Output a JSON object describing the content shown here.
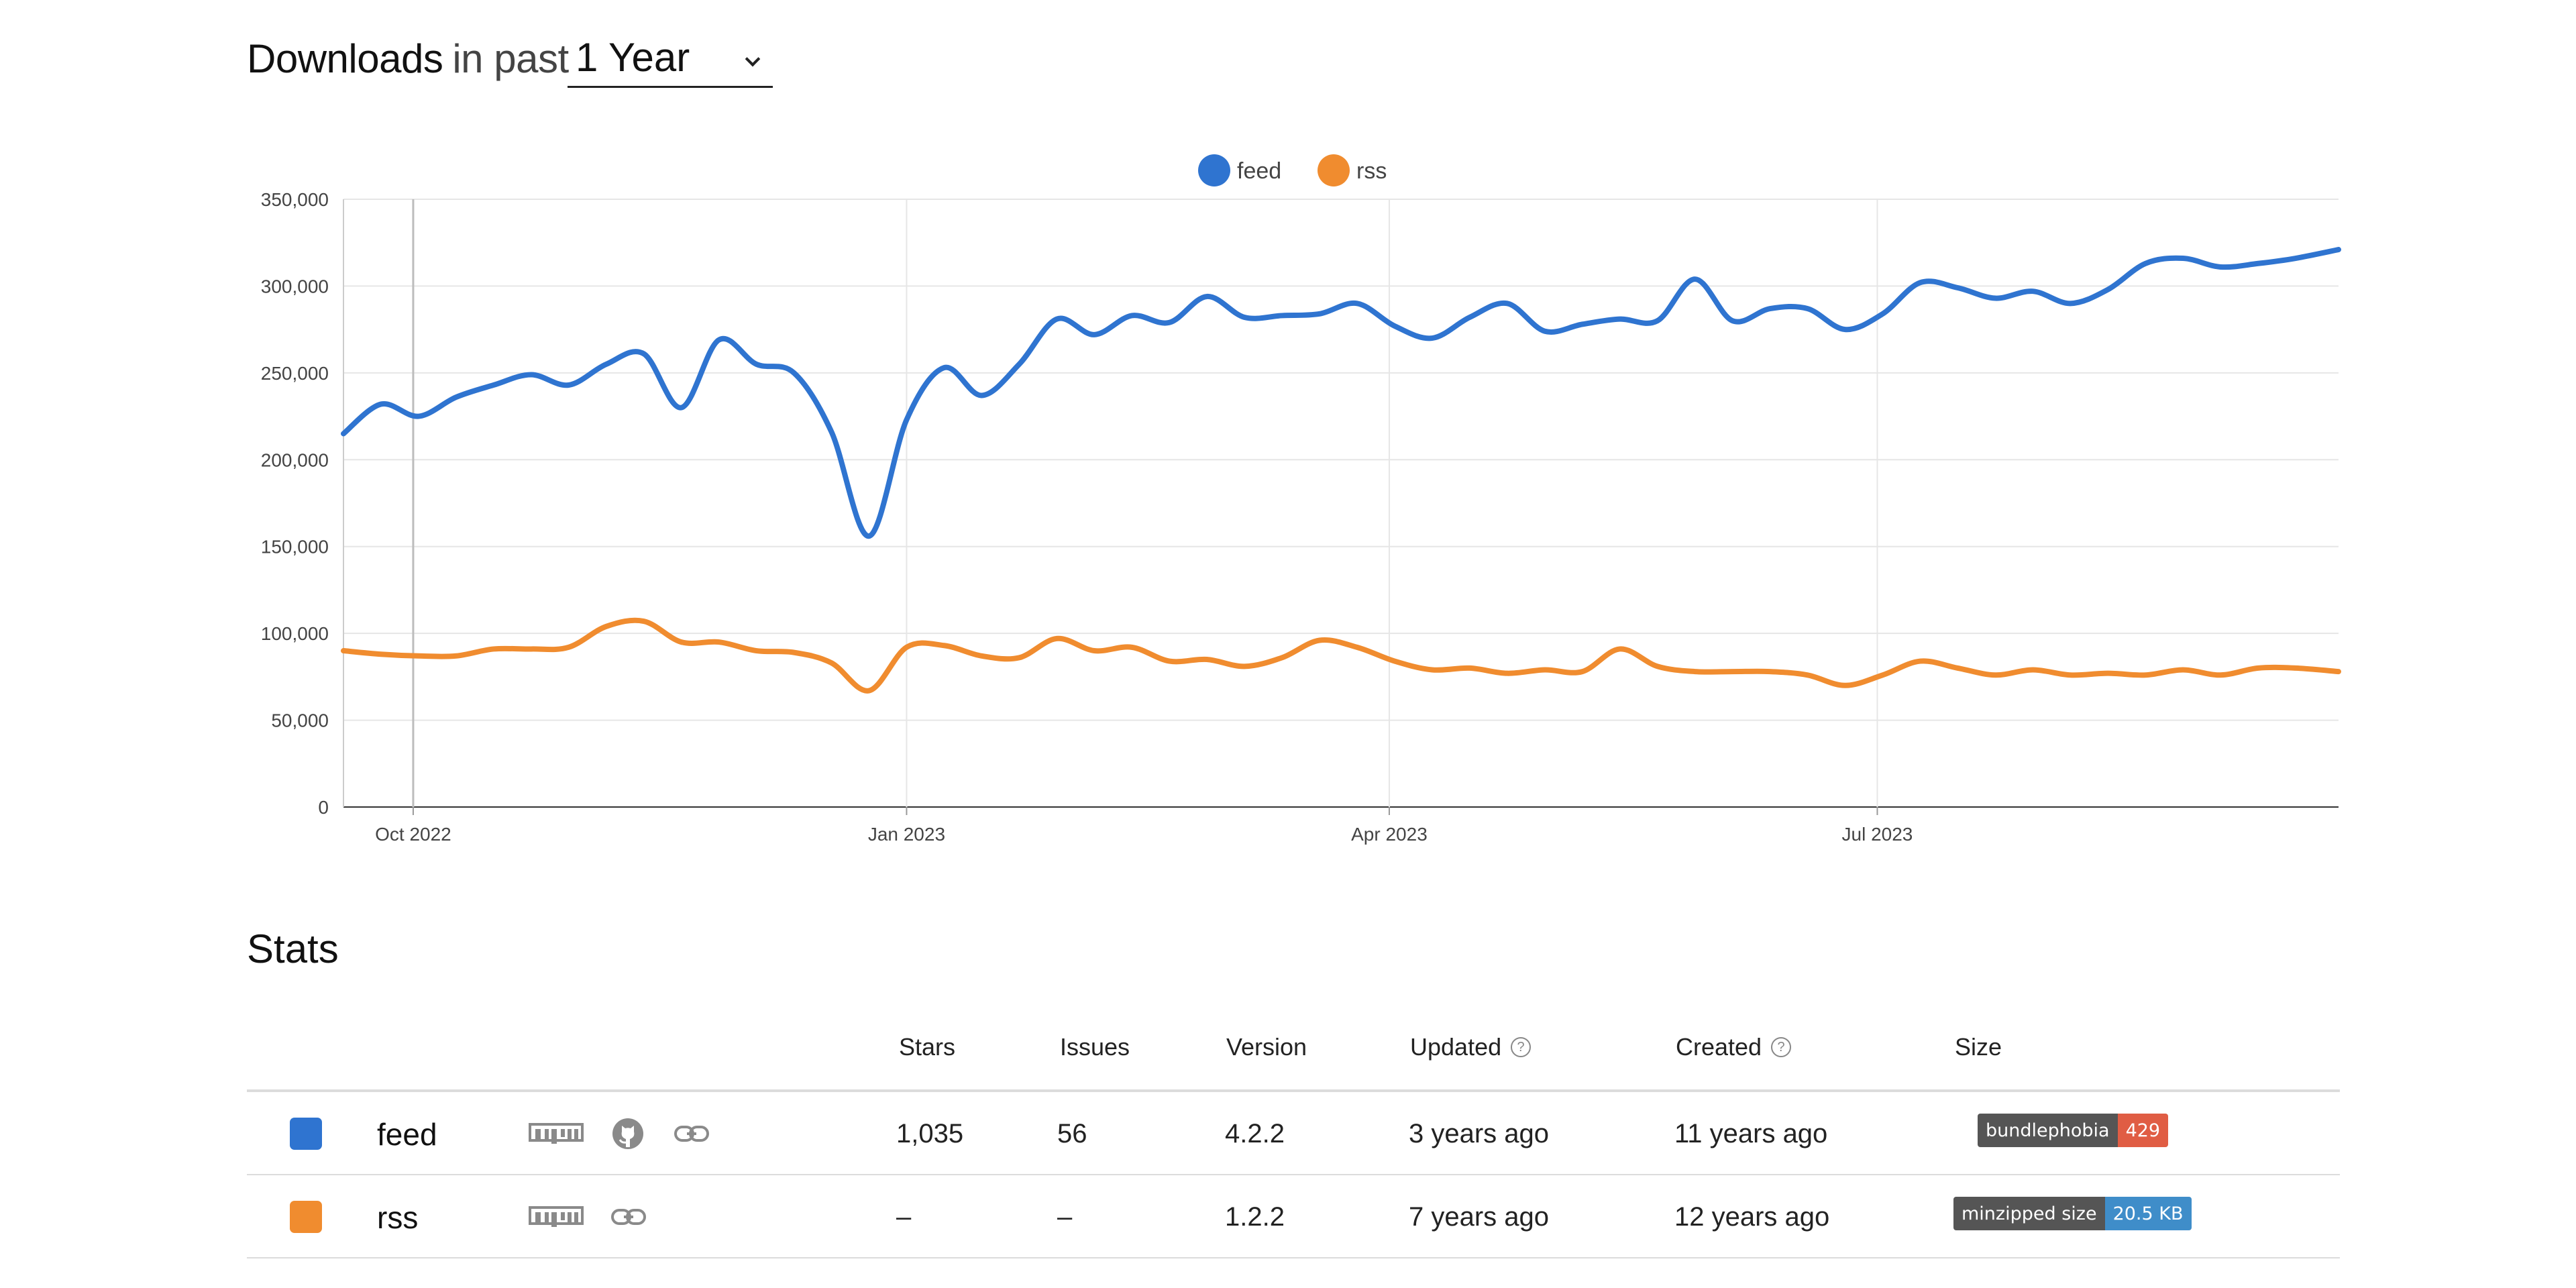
{
  "header": {
    "title_strong": "Downloads",
    "title_light": "in past",
    "period": {
      "selected": "1 Year"
    }
  },
  "colors": {
    "feed": "#2f74d0",
    "rss": "#f08c2f",
    "grid": "#e6e6e6",
    "badge_label": "#555555",
    "badge_red": "#e05d44",
    "badge_blue": "#3f8dc9"
  },
  "chart_data": {
    "type": "line",
    "legend": [
      "feed",
      "rss"
    ],
    "legend_position": "top-center",
    "grid": true,
    "ylim": [
      0,
      350000
    ],
    "y_ticks": [
      "350,000",
      "300,000",
      "250,000",
      "200,000",
      "150,000",
      "100,000",
      "50,000",
      "0"
    ],
    "y_tick_values": [
      350000,
      300000,
      250000,
      200000,
      150000,
      100000,
      50000,
      0
    ],
    "x_ticks": [
      "Oct 2022",
      "Jan 2023",
      "Apr 2023",
      "Jul 2023"
    ],
    "x_tick_dates": [
      "2022-10-01",
      "2023-01-01",
      "2023-04-01",
      "2023-07-01"
    ],
    "x_range": [
      "2022-09-18",
      "2023-09-25"
    ],
    "series": [
      {
        "name": "feed",
        "color": "#2f74d0",
        "points": [
          [
            "2022-09-18",
            215000
          ],
          [
            "2022-09-25",
            232000
          ],
          [
            "2022-10-02",
            225000
          ],
          [
            "2022-10-09",
            236000
          ],
          [
            "2022-10-16",
            243000
          ],
          [
            "2022-10-23",
            249000
          ],
          [
            "2022-10-30",
            243000
          ],
          [
            "2022-11-06",
            255000
          ],
          [
            "2022-11-13",
            261000
          ],
          [
            "2022-11-20",
            230000
          ],
          [
            "2022-11-27",
            269000
          ],
          [
            "2022-12-04",
            255000
          ],
          [
            "2022-12-11",
            250000
          ],
          [
            "2022-12-18",
            216000
          ],
          [
            "2022-12-25",
            156000
          ],
          [
            "2023-01-01",
            223000
          ],
          [
            "2023-01-08",
            253000
          ],
          [
            "2023-01-15",
            237000
          ],
          [
            "2023-01-22",
            255000
          ],
          [
            "2023-01-29",
            281000
          ],
          [
            "2023-02-05",
            272000
          ],
          [
            "2023-02-12",
            283000
          ],
          [
            "2023-02-19",
            279000
          ],
          [
            "2023-02-26",
            294000
          ],
          [
            "2023-03-05",
            282000
          ],
          [
            "2023-03-12",
            283000
          ],
          [
            "2023-03-19",
            284000
          ],
          [
            "2023-03-26",
            290000
          ],
          [
            "2023-04-02",
            277000
          ],
          [
            "2023-04-09",
            270000
          ],
          [
            "2023-04-16",
            282000
          ],
          [
            "2023-04-23",
            290000
          ],
          [
            "2023-04-30",
            274000
          ],
          [
            "2023-05-07",
            278000
          ],
          [
            "2023-05-14",
            281000
          ],
          [
            "2023-05-21",
            280000
          ],
          [
            "2023-05-28",
            304000
          ],
          [
            "2023-06-04",
            280000
          ],
          [
            "2023-06-11",
            287000
          ],
          [
            "2023-06-18",
            287000
          ],
          [
            "2023-06-25",
            275000
          ],
          [
            "2023-07-02",
            284000
          ],
          [
            "2023-07-09",
            302000
          ],
          [
            "2023-07-16",
            299000
          ],
          [
            "2023-07-23",
            293000
          ],
          [
            "2023-07-30",
            297000
          ],
          [
            "2023-08-06",
            290000
          ],
          [
            "2023-08-13",
            298000
          ],
          [
            "2023-08-20",
            313000
          ],
          [
            "2023-08-27",
            316000
          ],
          [
            "2023-09-03",
            311000
          ],
          [
            "2023-09-10",
            313000
          ],
          [
            "2023-09-17",
            316000
          ],
          [
            "2023-09-25",
            321000
          ]
        ]
      },
      {
        "name": "rss",
        "color": "#f08c2f",
        "points": [
          [
            "2022-09-18",
            90000
          ],
          [
            "2022-09-25",
            88000
          ],
          [
            "2022-10-02",
            87000
          ],
          [
            "2022-10-09",
            87000
          ],
          [
            "2022-10-16",
            91000
          ],
          [
            "2022-10-23",
            91000
          ],
          [
            "2022-10-30",
            92000
          ],
          [
            "2022-11-06",
            104000
          ],
          [
            "2022-11-13",
            107000
          ],
          [
            "2022-11-20",
            95000
          ],
          [
            "2022-11-27",
            95000
          ],
          [
            "2022-12-04",
            90000
          ],
          [
            "2022-12-11",
            89000
          ],
          [
            "2022-12-18",
            83000
          ],
          [
            "2022-12-25",
            67000
          ],
          [
            "2023-01-01",
            92000
          ],
          [
            "2023-01-08",
            93000
          ],
          [
            "2023-01-15",
            87000
          ],
          [
            "2023-01-22",
            86000
          ],
          [
            "2023-01-29",
            97000
          ],
          [
            "2023-02-05",
            90000
          ],
          [
            "2023-02-12",
            92000
          ],
          [
            "2023-02-19",
            84000
          ],
          [
            "2023-02-26",
            85000
          ],
          [
            "2023-03-05",
            81000
          ],
          [
            "2023-03-12",
            86000
          ],
          [
            "2023-03-19",
            96000
          ],
          [
            "2023-03-26",
            92000
          ],
          [
            "2023-04-02",
            84000
          ],
          [
            "2023-04-09",
            79000
          ],
          [
            "2023-04-16",
            80000
          ],
          [
            "2023-04-23",
            77000
          ],
          [
            "2023-04-30",
            79000
          ],
          [
            "2023-05-07",
            78000
          ],
          [
            "2023-05-14",
            91000
          ],
          [
            "2023-05-21",
            81000
          ],
          [
            "2023-05-28",
            78000
          ],
          [
            "2023-06-04",
            78000
          ],
          [
            "2023-06-11",
            78000
          ],
          [
            "2023-06-18",
            76000
          ],
          [
            "2023-06-25",
            70000
          ],
          [
            "2023-07-02",
            76000
          ],
          [
            "2023-07-09",
            84000
          ],
          [
            "2023-07-16",
            80000
          ],
          [
            "2023-07-23",
            76000
          ],
          [
            "2023-07-30",
            79000
          ],
          [
            "2023-08-06",
            76000
          ],
          [
            "2023-08-13",
            77000
          ],
          [
            "2023-08-20",
            76000
          ],
          [
            "2023-08-27",
            79000
          ],
          [
            "2023-09-03",
            76000
          ],
          [
            "2023-09-10",
            80000
          ],
          [
            "2023-09-17",
            80000
          ],
          [
            "2023-09-25",
            78000
          ]
        ]
      }
    ]
  },
  "stats": {
    "title": "Stats",
    "columns": {
      "stars": "Stars",
      "issues": "Issues",
      "version": "Version",
      "updated": "Updated",
      "created": "Created",
      "size": "Size"
    },
    "help_glyph": "?",
    "rows": [
      {
        "name": "feed",
        "color": "#2f74d0",
        "links": [
          "npm-icon",
          "github-icon",
          "link-icon"
        ],
        "stars": "1,035",
        "issues": "56",
        "version": "4.2.2",
        "updated": "3 years ago",
        "created": "11 years ago",
        "badge": {
          "label": "bundlephobia",
          "value": "429",
          "value_color": "#e05d44"
        }
      },
      {
        "name": "rss",
        "color": "#f08c2f",
        "links": [
          "npm-icon",
          "link-icon"
        ],
        "stars": "–",
        "issues": "–",
        "version": "1.2.2",
        "updated": "7 years ago",
        "created": "12 years ago",
        "badge": {
          "label": "minzipped size",
          "value": "20.5 KB",
          "value_color": "#3f8dc9"
        }
      }
    ]
  }
}
